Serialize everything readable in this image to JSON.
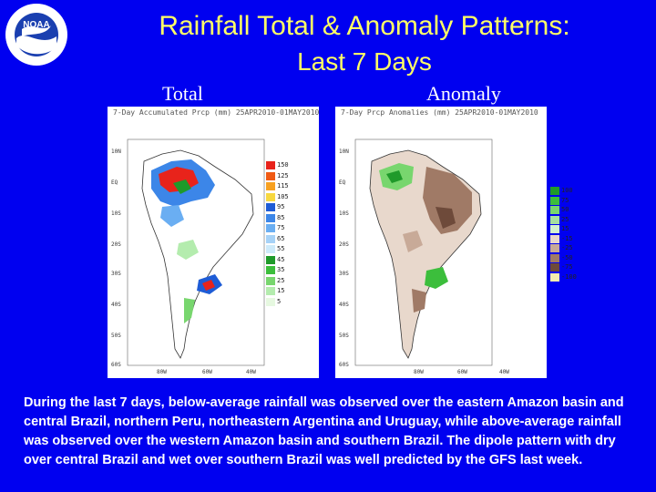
{
  "title": "Rainfall Total & Anomaly Patterns:",
  "subtitle": "Last 7 Days",
  "logo": {
    "text": "NOAA"
  },
  "labels": {
    "total": "Total",
    "anomaly": "Anomaly"
  },
  "total_panel": {
    "header": "7-Day Accumulated Prcp (mm) 25APR2010-01MAY2010",
    "lat_ticks": [
      "10N",
      "EQ",
      "10S",
      "20S",
      "30S",
      "40S",
      "50S",
      "60S"
    ],
    "lon_ticks": [
      "80W",
      "60W",
      "40W"
    ],
    "legend": [
      "150",
      "125",
      "115",
      "105",
      "95",
      "85",
      "75",
      "65",
      "55",
      "45",
      "35",
      "25",
      "15",
      "5"
    ],
    "legend_colors": [
      "#e8231b",
      "#f05a14",
      "#f7a020",
      "#f7d840",
      "#1e5cd6",
      "#3c86e8",
      "#6aaef2",
      "#a6d2f7",
      "#cdeafa",
      "#1f9a2a",
      "#3cbe3c",
      "#78d66e",
      "#b4ecae",
      "#e6f8e0"
    ]
  },
  "anomaly_panel": {
    "header": "7-Day Prcp Anomalies (mm) 25APR2010-01MAY2010",
    "lat_ticks": [
      "10N",
      "EQ",
      "10S",
      "20S",
      "30S",
      "40S",
      "50S",
      "60S"
    ],
    "lon_ticks": [
      "80W",
      "60W",
      "40W"
    ],
    "legend": [
      "100",
      "75",
      "50",
      "25",
      "15",
      "-15",
      "-25",
      "-50",
      "-75",
      "-100"
    ],
    "legend_colors": [
      "#1f9a2a",
      "#3cbe3c",
      "#78d66e",
      "#a6e0a0",
      "#d4f2d0",
      "#e8d8cc",
      "#c8aa98",
      "#a07a66",
      "#6e4a3a",
      "#f4ecb0"
    ]
  },
  "description": "During the last 7 days, below-average rainfall was observed over the eastern Amazon basin and central Brazil, northern Peru, northeastern Argentina and Uruguay, while above-average rainfall was observed over the western Amazon basin and southern Brazil. The dipole pattern with dry over central Brazil and wet over southern Brazil was well predicted by the GFS last week."
}
